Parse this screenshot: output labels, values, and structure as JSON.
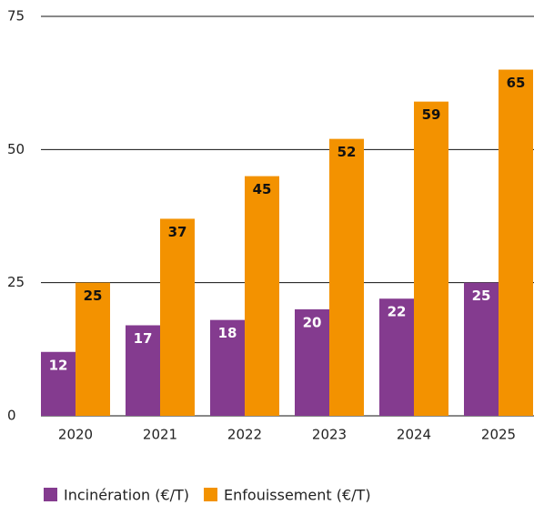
{
  "chart_data": {
    "type": "bar",
    "categories": [
      "2020",
      "2021",
      "2022",
      "2023",
      "2024",
      "2025"
    ],
    "series": [
      {
        "name": "Incinération (€/T)",
        "color": "#843b8f",
        "values": [
          12,
          17,
          18,
          20,
          22,
          25
        ]
      },
      {
        "name": "Enfouissement (€/T)",
        "color": "#f39200",
        "values": [
          25,
          37,
          45,
          52,
          59,
          65
        ]
      }
    ],
    "ylim": [
      0,
      75
    ],
    "yticks": [
      0,
      25,
      50,
      75
    ],
    "grid": true,
    "legend": "bottom"
  }
}
